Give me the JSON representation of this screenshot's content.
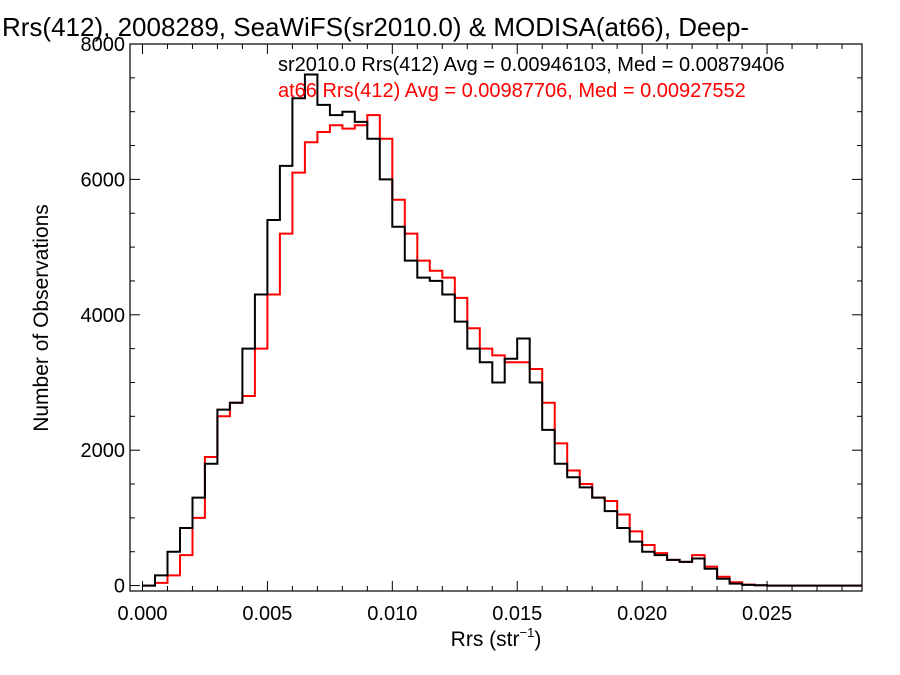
{
  "chart_data": {
    "type": "line",
    "title": "Rrs(412), 2008289, SeaWiFS(sr2010.0) & MODISA(at66), Deep-",
    "xlabel_main": "Rrs (str",
    "xlabel_sup": "−1",
    "xlabel_close": ")",
    "ylabel": "Number of Observations",
    "xlim": [
      -0.0005,
      0.0288
    ],
    "ylim": [
      -80,
      8000
    ],
    "x_ticks": [
      0.0,
      0.005,
      0.01,
      0.015,
      0.02,
      0.025
    ],
    "x_tick_labels": [
      "0.000",
      "0.005",
      "0.010",
      "0.015",
      "0.020",
      "0.025"
    ],
    "y_ticks": [
      0,
      2000,
      4000,
      6000,
      8000
    ],
    "y_tick_labels": [
      "0",
      "2000",
      "4000",
      "6000",
      "8000"
    ],
    "annotations": [
      {
        "text": "sr2010.0 Rrs(412) Avg = 0.00946103, Med = 0.00879406",
        "color": "#000000"
      },
      {
        "text": "at66 Rrs(412) Avg = 0.00987706, Med = 0.00927552",
        "color": "#ff0000"
      }
    ],
    "series": [
      {
        "name": "sr2010.0",
        "color": "#000000",
        "x": [
          0.0,
          0.0005,
          0.001,
          0.0015,
          0.002,
          0.0025,
          0.003,
          0.0035,
          0.004,
          0.0045,
          0.005,
          0.0055,
          0.006,
          0.0065,
          0.007,
          0.0075,
          0.008,
          0.0085,
          0.009,
          0.0095,
          0.01,
          0.0105,
          0.011,
          0.0115,
          0.012,
          0.0125,
          0.013,
          0.0135,
          0.014,
          0.0145,
          0.015,
          0.0155,
          0.016,
          0.0165,
          0.017,
          0.0175,
          0.018,
          0.0185,
          0.019,
          0.0195,
          0.02,
          0.0205,
          0.021,
          0.0215,
          0.022,
          0.0225,
          0.023,
          0.0235,
          0.024,
          0.0245,
          0.025,
          0.0255,
          0.026,
          0.0265,
          0.027,
          0.0275,
          0.028,
          0.0285
        ],
        "y": [
          0,
          150,
          500,
          850,
          1300,
          1800,
          2600,
          2700,
          3500,
          4300,
          5400,
          6200,
          7200,
          7550,
          7100,
          6950,
          7000,
          6850,
          6600,
          6000,
          5300,
          4800,
          4550,
          4500,
          4300,
          3900,
          3500,
          3300,
          3000,
          3350,
          3650,
          3000,
          2300,
          1800,
          1600,
          1450,
          1300,
          1100,
          850,
          650,
          500,
          450,
          380,
          350,
          400,
          250,
          100,
          30,
          10,
          5,
          0,
          0,
          0,
          0,
          0,
          0,
          0,
          0
        ]
      },
      {
        "name": "at66",
        "color": "#ff0000",
        "x": [
          0.0,
          0.0005,
          0.001,
          0.0015,
          0.002,
          0.0025,
          0.003,
          0.0035,
          0.004,
          0.0045,
          0.005,
          0.0055,
          0.006,
          0.0065,
          0.007,
          0.0075,
          0.008,
          0.0085,
          0.009,
          0.0095,
          0.01,
          0.0105,
          0.011,
          0.0115,
          0.012,
          0.0125,
          0.013,
          0.0135,
          0.014,
          0.0145,
          0.015,
          0.0155,
          0.016,
          0.0165,
          0.017,
          0.0175,
          0.018,
          0.0185,
          0.019,
          0.0195,
          0.02,
          0.0205,
          0.021,
          0.0215,
          0.022,
          0.0225,
          0.023,
          0.0235,
          0.024,
          0.0245,
          0.025,
          0.0255,
          0.026,
          0.0265,
          0.027,
          0.0275,
          0.028,
          0.0285
        ],
        "y": [
          0,
          40,
          150,
          450,
          1000,
          1900,
          2500,
          2700,
          2800,
          3500,
          4300,
          5200,
          6100,
          6550,
          6700,
          6800,
          6750,
          6800,
          6950,
          6600,
          5700,
          5200,
          4800,
          4650,
          4550,
          4250,
          3800,
          3500,
          3400,
          3300,
          3300,
          3200,
          2700,
          2100,
          1700,
          1500,
          1300,
          1250,
          1050,
          800,
          600,
          480,
          380,
          350,
          450,
          280,
          130,
          50,
          15,
          5,
          0,
          0,
          0,
          0,
          0,
          0,
          0,
          0
        ]
      }
    ]
  }
}
